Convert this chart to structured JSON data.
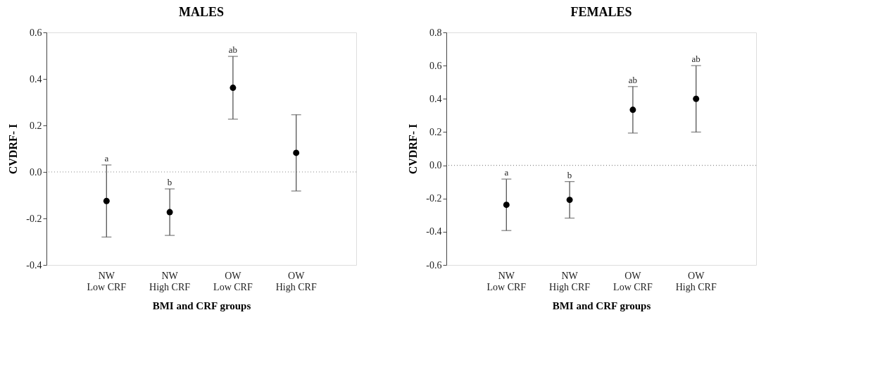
{
  "chart_data": [
    {
      "type": "scatter",
      "title": "MALES",
      "xlabel": "BMI and CRF groups",
      "ylabel": "CVDRF- I",
      "categories": [
        "NW\nLow CRF",
        "NW\nHigh CRF",
        "OW\nLow CRF",
        "OW\nHigh CRF"
      ],
      "series": [
        {
          "color": "#000000",
          "values": [
            -0.125,
            -0.173,
            0.362,
            0.082
          ],
          "errors": [
            0.155,
            0.1,
            0.135,
            0.164
          ]
        }
      ],
      "ylim": [
        -0.4,
        0.6
      ],
      "yticks": [
        -0.4,
        -0.2,
        {
          "value": 0,
          "label": "0.0"
        },
        0.2,
        0.4,
        0.6
      ],
      "marker": "circle",
      "grid": false,
      "legend": false,
      "ref_lines": [
        {
          "axis": "y",
          "value": 0,
          "line_style": "dotted",
          "color": "#888888"
        }
      ],
      "annotations": [
        "a",
        "b",
        "ab"
      ]
    },
    {
      "type": "scatter",
      "title": "FEMALES",
      "xlabel": "BMI and CRF groups",
      "ylabel": "CVDRF- I",
      "categories": [
        "NW\nLow CRF",
        "NW\nHigh CRF",
        "OW\nLow CRF",
        "OW\nHigh CRF"
      ],
      "series": [
        {
          "color": "#000000",
          "values": [
            -0.238,
            -0.208,
            0.334,
            0.4
          ],
          "errors": [
            0.155,
            0.11,
            0.14,
            0.2
          ]
        }
      ],
      "ylim": [
        -0.6,
        0.8
      ],
      "yticks": [
        -0.6,
        -0.4,
        -0.2,
        {
          "value": 0,
          "label": "0.0"
        },
        0.2,
        0.4,
        0.6,
        0.8
      ],
      "marker": "circle",
      "grid": false,
      "legend": false,
      "ref_lines": [
        {
          "axis": "y",
          "value": 0,
          "line_style": "dotted",
          "color": "#888888"
        }
      ],
      "annotations": [
        "a",
        "b",
        "ab",
        "ab"
      ]
    }
  ]
}
